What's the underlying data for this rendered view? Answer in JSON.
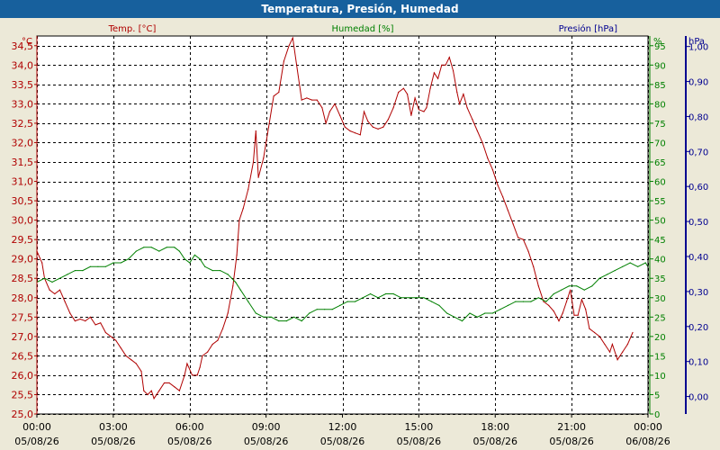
{
  "window": {
    "title": "Temperatura, Presión, Humedad"
  },
  "colors": {
    "temperature": "#b00000",
    "humidity": "#008000",
    "pressure": "#000090",
    "titlebar": "#17609d",
    "background": "#ece9d8",
    "plot": "#ffffff"
  },
  "chart_data": {
    "type": "line",
    "title": "Temperatura, Presión, Humedad",
    "grid": true,
    "legend": "none",
    "series_headers": {
      "temperature": "Temp. [°C]",
      "humidity": "Humedad [%]",
      "pressure": "Presión [hPa]"
    },
    "axes": {
      "temperature": {
        "unit": "°C",
        "range": [
          25.0,
          34.75
        ],
        "ticks": [
          "25,0",
          "25,5",
          "26,0",
          "26,5",
          "27,0",
          "27,5",
          "28,0",
          "28,5",
          "29,0",
          "29,5",
          "30,0",
          "30,5",
          "31,0",
          "31,5",
          "32,0",
          "32,5",
          "33,0",
          "33,5",
          "34,0",
          "34,5"
        ]
      },
      "humidity": {
        "unit": "%",
        "range": [
          0,
          97.5
        ],
        "ticks": [
          "0",
          "5",
          "10",
          "15",
          "20",
          "25",
          "30",
          "35",
          "40",
          "45",
          "50",
          "55",
          "60",
          "65",
          "70",
          "75",
          "80",
          "85",
          "90",
          "95"
        ]
      },
      "pressure": {
        "unit": "hPa",
        "range": [
          -0.05,
          1.03
        ],
        "ticks": [
          "0,00",
          "0,10",
          "0,20",
          "0,30",
          "0,40",
          "0,50",
          "0,60",
          "0,70",
          "0,80",
          "0,90",
          "1,00"
        ]
      },
      "x": {
        "range": [
          0,
          24
        ],
        "ticks": [
          {
            "time": "00:00",
            "date": "05/08/26"
          },
          {
            "time": "03:00",
            "date": "05/08/26"
          },
          {
            "time": "06:00",
            "date": "05/08/26"
          },
          {
            "time": "09:00",
            "date": "05/08/26"
          },
          {
            "time": "12:00",
            "date": "05/08/26"
          },
          {
            "time": "15:00",
            "date": "05/08/26"
          },
          {
            "time": "18:00",
            "date": "05/08/26"
          },
          {
            "time": "21:00",
            "date": "05/08/26"
          },
          {
            "time": "00:00",
            "date": "06/08/26"
          }
        ]
      }
    },
    "series": [
      {
        "name": "Temp. [°C]",
        "axis": "temperature",
        "points": [
          [
            0.0,
            29.2
          ],
          [
            0.2,
            28.9
          ],
          [
            0.3,
            28.5
          ],
          [
            0.5,
            28.2
          ],
          [
            0.7,
            28.1
          ],
          [
            0.9,
            28.2
          ],
          [
            1.1,
            27.9
          ],
          [
            1.3,
            27.6
          ],
          [
            1.5,
            27.4
          ],
          [
            1.7,
            27.45
          ],
          [
            1.9,
            27.4
          ],
          [
            2.1,
            27.5
          ],
          [
            2.3,
            27.3
          ],
          [
            2.5,
            27.35
          ],
          [
            2.7,
            27.1
          ],
          [
            2.9,
            27.0
          ],
          [
            3.1,
            26.9
          ],
          [
            3.3,
            26.7
          ],
          [
            3.5,
            26.5
          ],
          [
            3.7,
            26.4
          ],
          [
            3.9,
            26.3
          ],
          [
            4.1,
            26.1
          ],
          [
            4.2,
            25.6
          ],
          [
            4.35,
            25.5
          ],
          [
            4.5,
            25.6
          ],
          [
            4.6,
            25.4
          ],
          [
            4.8,
            25.6
          ],
          [
            5.0,
            25.8
          ],
          [
            5.2,
            25.8
          ],
          [
            5.4,
            25.7
          ],
          [
            5.6,
            25.6
          ],
          [
            5.8,
            26.0
          ],
          [
            5.9,
            26.3
          ],
          [
            6.1,
            26.0
          ],
          [
            6.3,
            26.0
          ],
          [
            6.4,
            26.2
          ],
          [
            6.5,
            26.5
          ],
          [
            6.7,
            26.6
          ],
          [
            6.9,
            26.8
          ],
          [
            7.1,
            26.9
          ],
          [
            7.3,
            27.2
          ],
          [
            7.5,
            27.6
          ],
          [
            7.7,
            28.3
          ],
          [
            7.85,
            29.1
          ],
          [
            7.95,
            30.0
          ],
          [
            8.1,
            30.3
          ],
          [
            8.3,
            30.8
          ],
          [
            8.5,
            31.5
          ],
          [
            8.6,
            32.3
          ],
          [
            8.7,
            31.1
          ],
          [
            8.9,
            31.6
          ],
          [
            9.1,
            32.4
          ],
          [
            9.3,
            33.2
          ],
          [
            9.5,
            33.3
          ],
          [
            9.7,
            34.1
          ],
          [
            9.9,
            34.5
          ],
          [
            10.05,
            34.7
          ],
          [
            10.2,
            34.0
          ],
          [
            10.4,
            33.1
          ],
          [
            10.6,
            33.15
          ],
          [
            10.8,
            33.1
          ],
          [
            11.0,
            33.1
          ],
          [
            11.2,
            32.9
          ],
          [
            11.35,
            32.5
          ],
          [
            11.5,
            32.8
          ],
          [
            11.7,
            33.0
          ],
          [
            11.9,
            32.7
          ],
          [
            12.1,
            32.4
          ],
          [
            12.3,
            32.3
          ],
          [
            12.5,
            32.25
          ],
          [
            12.7,
            32.2
          ],
          [
            12.85,
            32.8
          ],
          [
            13.0,
            32.55
          ],
          [
            13.2,
            32.4
          ],
          [
            13.4,
            32.35
          ],
          [
            13.6,
            32.4
          ],
          [
            13.8,
            32.6
          ],
          [
            14.0,
            32.9
          ],
          [
            14.2,
            33.3
          ],
          [
            14.4,
            33.4
          ],
          [
            14.55,
            33.25
          ],
          [
            14.7,
            32.7
          ],
          [
            14.85,
            33.15
          ],
          [
            15.0,
            32.85
          ],
          [
            15.2,
            32.8
          ],
          [
            15.3,
            32.9
          ],
          [
            15.45,
            33.4
          ],
          [
            15.6,
            33.8
          ],
          [
            15.75,
            33.65
          ],
          [
            15.9,
            34.0
          ],
          [
            16.05,
            34.0
          ],
          [
            16.2,
            34.2
          ],
          [
            16.35,
            33.85
          ],
          [
            16.5,
            33.3
          ],
          [
            16.6,
            33.0
          ],
          [
            16.75,
            33.25
          ],
          [
            16.9,
            32.9
          ],
          [
            17.1,
            32.6
          ],
          [
            17.3,
            32.3
          ],
          [
            17.5,
            32.0
          ],
          [
            17.7,
            31.6
          ],
          [
            17.9,
            31.3
          ],
          [
            18.1,
            30.9
          ],
          [
            18.3,
            30.6
          ],
          [
            18.5,
            30.25
          ],
          [
            18.7,
            29.9
          ],
          [
            18.9,
            29.55
          ],
          [
            19.1,
            29.5
          ],
          [
            19.3,
            29.2
          ],
          [
            19.5,
            28.8
          ],
          [
            19.7,
            28.3
          ],
          [
            19.9,
            27.9
          ],
          [
            20.1,
            27.8
          ],
          [
            20.3,
            27.65
          ],
          [
            20.5,
            27.4
          ],
          [
            20.65,
            27.6
          ],
          [
            20.8,
            27.9
          ],
          [
            20.95,
            28.2
          ],
          [
            21.1,
            27.55
          ],
          [
            21.25,
            27.55
          ],
          [
            21.4,
            27.95
          ],
          [
            21.55,
            27.7
          ],
          [
            21.7,
            27.2
          ],
          [
            21.9,
            27.1
          ],
          [
            22.1,
            27.0
          ],
          [
            22.3,
            26.8
          ],
          [
            22.5,
            26.6
          ],
          [
            22.6,
            26.8
          ],
          [
            22.8,
            26.4
          ],
          [
            23.0,
            26.6
          ],
          [
            23.2,
            26.8
          ],
          [
            23.4,
            27.1
          ]
        ]
      },
      {
        "name": "Humedad [%]",
        "axis": "humidity",
        "points": [
          [
            0.0,
            34
          ],
          [
            0.3,
            35
          ],
          [
            0.6,
            34
          ],
          [
            0.9,
            35
          ],
          [
            1.2,
            36
          ],
          [
            1.5,
            37
          ],
          [
            1.8,
            37
          ],
          [
            2.1,
            38
          ],
          [
            2.4,
            38
          ],
          [
            2.7,
            38
          ],
          [
            3.0,
            39
          ],
          [
            3.3,
            39
          ],
          [
            3.6,
            40
          ],
          [
            3.9,
            42
          ],
          [
            4.2,
            43
          ],
          [
            4.5,
            43
          ],
          [
            4.8,
            42
          ],
          [
            5.1,
            43
          ],
          [
            5.4,
            43
          ],
          [
            5.6,
            42
          ],
          [
            5.8,
            40
          ],
          [
            6.0,
            39
          ],
          [
            6.2,
            41
          ],
          [
            6.4,
            40
          ],
          [
            6.6,
            38
          ],
          [
            6.9,
            37
          ],
          [
            7.2,
            37
          ],
          [
            7.5,
            36
          ],
          [
            7.8,
            34
          ],
          [
            8.0,
            32
          ],
          [
            8.3,
            29
          ],
          [
            8.6,
            26
          ],
          [
            8.9,
            25
          ],
          [
            9.2,
            25
          ],
          [
            9.5,
            24
          ],
          [
            9.8,
            24
          ],
          [
            10.1,
            25
          ],
          [
            10.4,
            24
          ],
          [
            10.7,
            26
          ],
          [
            11.0,
            27
          ],
          [
            11.3,
            27
          ],
          [
            11.6,
            27
          ],
          [
            11.9,
            28
          ],
          [
            12.2,
            29
          ],
          [
            12.5,
            29
          ],
          [
            12.8,
            30
          ],
          [
            13.1,
            31
          ],
          [
            13.4,
            30
          ],
          [
            13.7,
            31
          ],
          [
            14.0,
            31
          ],
          [
            14.3,
            30
          ],
          [
            14.6,
            30
          ],
          [
            14.9,
            30
          ],
          [
            15.2,
            30
          ],
          [
            15.5,
            29
          ],
          [
            15.8,
            28
          ],
          [
            16.1,
            26
          ],
          [
            16.4,
            25
          ],
          [
            16.7,
            24
          ],
          [
            17.0,
            26
          ],
          [
            17.3,
            25
          ],
          [
            17.6,
            26
          ],
          [
            17.9,
            26
          ],
          [
            18.2,
            27
          ],
          [
            18.5,
            28
          ],
          [
            18.8,
            29
          ],
          [
            19.1,
            29
          ],
          [
            19.4,
            29
          ],
          [
            19.7,
            30
          ],
          [
            20.0,
            29
          ],
          [
            20.3,
            31
          ],
          [
            20.6,
            32
          ],
          [
            20.9,
            33
          ],
          [
            21.2,
            33
          ],
          [
            21.5,
            32
          ],
          [
            21.8,
            33
          ],
          [
            22.1,
            35
          ],
          [
            22.4,
            36
          ],
          [
            22.7,
            37
          ],
          [
            23.0,
            38
          ],
          [
            23.3,
            39
          ],
          [
            23.6,
            38
          ],
          [
            23.9,
            39
          ],
          [
            24.0,
            38
          ]
        ]
      }
    ]
  }
}
